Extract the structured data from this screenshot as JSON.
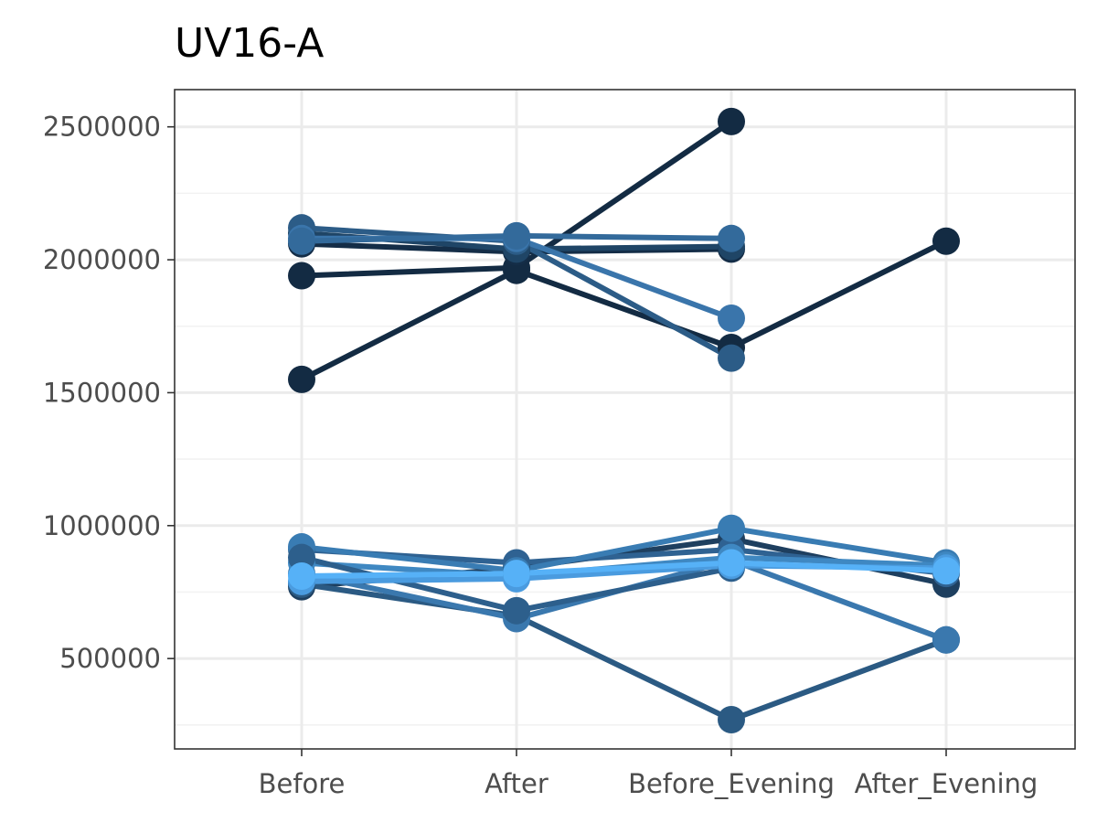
{
  "chart_data": {
    "type": "line",
    "title": "UV16-A",
    "xlabel": "",
    "ylabel": "",
    "categories": [
      "Before",
      "After",
      "Before_Evening",
      "After_Evening"
    ],
    "ylim": [
      160000,
      2640000
    ],
    "yticks": [
      500000,
      1000000,
      1500000,
      2000000,
      2500000
    ],
    "ytick_labels": [
      "500000",
      "1000000",
      "1500000",
      "2000000",
      "2500000"
    ],
    "grid": true,
    "legend": "none",
    "series": [
      {
        "color": "#132b43",
        "values": [
          1550000,
          1960000,
          1670000,
          2070000
        ]
      },
      {
        "color": "#132b43",
        "values": [
          1940000,
          1970000,
          2520000,
          null
        ]
      },
      {
        "color": "#142d47",
        "values": [
          2060000,
          2030000,
          2040000,
          null
        ]
      },
      {
        "color": "#1f4566",
        "values": [
          2100000,
          2040000,
          2050000,
          null
        ]
      },
      {
        "color": "#2c5c87",
        "values": [
          2120000,
          2070000,
          1630000,
          null
        ]
      },
      {
        "color": "#3a75ab",
        "values": [
          2080000,
          2080000,
          1780000,
          null
        ]
      },
      {
        "color": "#336a9b",
        "values": [
          2070000,
          2090000,
          2080000,
          null
        ]
      },
      {
        "color": "#1e3f5f",
        "values": [
          770000,
          840000,
          950000,
          780000
        ]
      },
      {
        "color": "#2b5a83",
        "values": [
          780000,
          660000,
          270000,
          570000
        ]
      },
      {
        "color": "#3a78ae",
        "values": [
          820000,
          650000,
          870000,
          570000
        ]
      },
      {
        "color": "#2f6292",
        "values": [
          910000,
          860000,
          910000,
          820000
        ]
      },
      {
        "color": "#397cb3",
        "values": [
          920000,
          830000,
          990000,
          860000
        ]
      },
      {
        "color": "#3f88c2",
        "values": [
          860000,
          810000,
          880000,
          850000
        ]
      },
      {
        "color": "#2d5f8c",
        "values": [
          880000,
          680000,
          840000,
          null
        ]
      },
      {
        "color": "#4a9bdf",
        "values": [
          790000,
          800000,
          850000,
          840000
        ]
      },
      {
        "color": "#56b1f7",
        "values": [
          810000,
          820000,
          860000,
          830000
        ]
      }
    ]
  }
}
